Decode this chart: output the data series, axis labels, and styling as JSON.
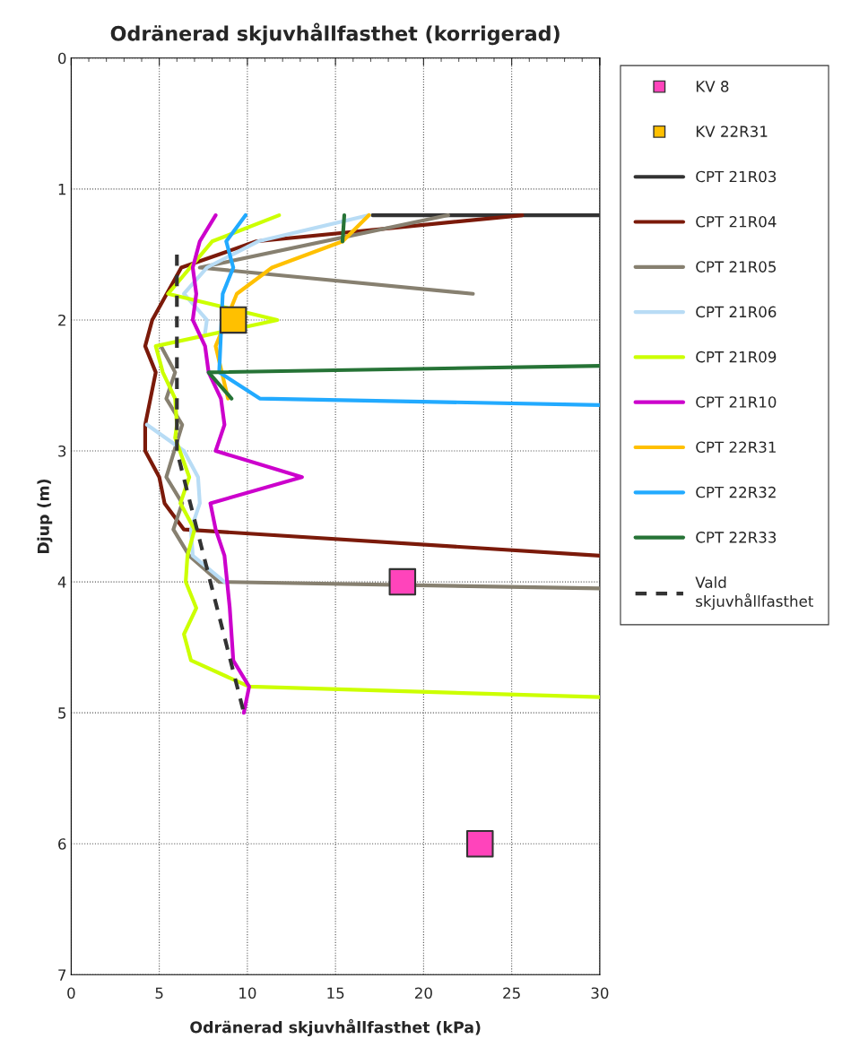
{
  "chart_data": {
    "type": "line",
    "title": "Odränerad skjuvhållfasthet (korrigerad)",
    "xlabel": "Odränerad skjuvhållfasthet (kPa)",
    "ylabel": "Djup (m)",
    "xlim": [
      0,
      30
    ],
    "xticks": [
      0,
      5,
      10,
      15,
      20,
      25,
      30
    ],
    "ylim": [
      7,
      0
    ],
    "yticks": [
      0,
      1,
      2,
      3,
      4,
      5,
      6,
      7
    ],
    "grid": true,
    "legend": "right",
    "series": [
      {
        "name": "KV 8",
        "type": "scatter",
        "marker": "square",
        "color": "#ff44bb",
        "x": [
          18.8,
          23.2
        ],
        "values": [
          4.0,
          6.0
        ]
      },
      {
        "name": "KV 22R31",
        "type": "scatter",
        "marker": "square",
        "color": "#ffc000",
        "x": [
          9.2
        ],
        "values": [
          2.0
        ]
      },
      {
        "name": "CPT 21R03",
        "color": "#333333",
        "x": [
          17.1,
          30
        ],
        "values": [
          1.2,
          1.2
        ]
      },
      {
        "name": "CPT 21R04",
        "color": "#7b1a0a",
        "x": [
          25.6,
          10.5,
          6.25,
          4.6,
          4.2,
          4.8,
          4.2,
          4.2,
          5.0,
          5.3,
          6.4,
          30
        ],
        "values": [
          1.2,
          1.4,
          1.6,
          2.0,
          2.2,
          2.4,
          2.8,
          3.0,
          3.2,
          3.4,
          3.6,
          3.8
        ]
      },
      {
        "name": "CPT 21R05",
        "color": "#878070",
        "x": [
          21.4,
          7.3,
          22.8,
          null,
          5.1,
          5.9,
          5.4,
          6.3,
          5.4,
          6.3,
          5.8,
          6.7,
          8.4,
          30
        ],
        "values": [
          1.2,
          1.6,
          1.8,
          null,
          2.2,
          2.4,
          2.6,
          2.8,
          3.2,
          3.4,
          3.6,
          3.8,
          4.0,
          4.05
        ]
      },
      {
        "name": "CPT 21R06",
        "color": "#b8dcf5",
        "x": [
          16.9,
          10.6,
          7.7,
          6.4,
          7.7,
          7.6,
          null,
          4.3,
          6.4,
          7.2,
          7.3,
          6.8,
          6.9,
          8.7
        ],
        "values": [
          1.2,
          1.4,
          1.6,
          1.8,
          2.0,
          2.1,
          null,
          2.8,
          3.0,
          3.2,
          3.4,
          3.6,
          3.8,
          4.0
        ]
      },
      {
        "name": "CPT 21R09",
        "color": "#ccff00",
        "x": [
          11.8,
          8.0,
          5.5,
          11.7,
          4.8,
          5.2,
          5.9,
          6.0,
          5.9,
          6.7,
          6.2,
          7.0,
          6.6,
          6.5,
          7.1,
          6.4,
          6.8,
          10.1,
          30
        ],
        "values": [
          1.2,
          1.4,
          1.8,
          2.0,
          2.2,
          2.4,
          2.6,
          2.8,
          2.9,
          3.2,
          3.4,
          3.6,
          3.8,
          4.0,
          4.2,
          4.4,
          4.6,
          4.8,
          4.88
        ]
      },
      {
        "name": "CPT 21R10",
        "color": "#cc00cc",
        "x": [
          8.2,
          7.3,
          6.9,
          7.1,
          6.9,
          7.6,
          7.8,
          8.5,
          8.7,
          8.2,
          13.1,
          7.9,
          8.2,
          8.7,
          9.0,
          9.2,
          10.1,
          9.8
        ],
        "values": [
          1.2,
          1.4,
          1.6,
          1.8,
          2.0,
          2.2,
          2.4,
          2.6,
          2.8,
          3.0,
          3.2,
          3.4,
          3.6,
          3.8,
          4.2,
          4.6,
          4.8,
          5.0
        ]
      },
      {
        "name": "CPT 22R31",
        "color": "#ffc000",
        "x": [
          16.9,
          15.4,
          11.4,
          9.4,
          8.2,
          8.9
        ],
        "values": [
          1.2,
          1.4,
          1.6,
          1.8,
          2.2,
          2.6
        ]
      },
      {
        "name": "CPT 22R32",
        "color": "#22aaff",
        "x": [
          9.9,
          8.8,
          9.2,
          8.6,
          8.4,
          10.7,
          30
        ],
        "values": [
          1.2,
          1.4,
          1.6,
          1.8,
          2.4,
          2.6,
          2.65
        ]
      },
      {
        "name": "CPT 22R33",
        "color": "#267336",
        "x": [
          15.5,
          15.4,
          null,
          30,
          7.8,
          9.1
        ],
        "values": [
          1.2,
          1.4,
          null,
          2.35,
          2.4,
          2.6
        ]
      },
      {
        "name": "Vald skjuvhållfasthet",
        "color": "#333333",
        "line_style": "dashed",
        "x": [
          6.0,
          6.0,
          9.8
        ],
        "values": [
          1.5,
          3.0,
          5.0
        ]
      }
    ]
  }
}
